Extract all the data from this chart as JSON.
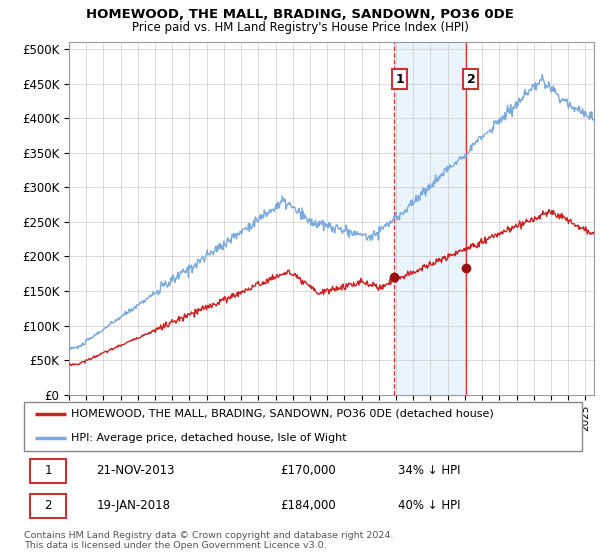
{
  "title1": "HOMEWOOD, THE MALL, BRADING, SANDOWN, PO36 0DE",
  "title2": "Price paid vs. HM Land Registry's House Price Index (HPI)",
  "ylabel_ticks": [
    "£0",
    "£50K",
    "£100K",
    "£150K",
    "£200K",
    "£250K",
    "£300K",
    "£350K",
    "£400K",
    "£450K",
    "£500K"
  ],
  "ytick_values": [
    0,
    50000,
    100000,
    150000,
    200000,
    250000,
    300000,
    350000,
    400000,
    450000,
    500000
  ],
  "ylim": [
    0,
    510000
  ],
  "xlim_start": 1995.0,
  "xlim_end": 2025.5,
  "hpi_color": "#7aaadd",
  "price_color": "#cc2222",
  "sale1_x": 2013.9,
  "sale1_y": 170000,
  "sale2_x": 2018.05,
  "sale2_y": 184000,
  "vline1_x": 2013.9,
  "vline2_x": 2018.05,
  "legend_house": "HOMEWOOD, THE MALL, BRADING, SANDOWN, PO36 0DE (detached house)",
  "legend_hpi": "HPI: Average price, detached house, Isle of Wight",
  "footnote": "Contains HM Land Registry data © Crown copyright and database right 2024.\nThis data is licensed under the Open Government Licence v3.0.",
  "background_color": "#ffffff",
  "plot_bg_color": "#ffffff",
  "grid_color": "#cccccc"
}
